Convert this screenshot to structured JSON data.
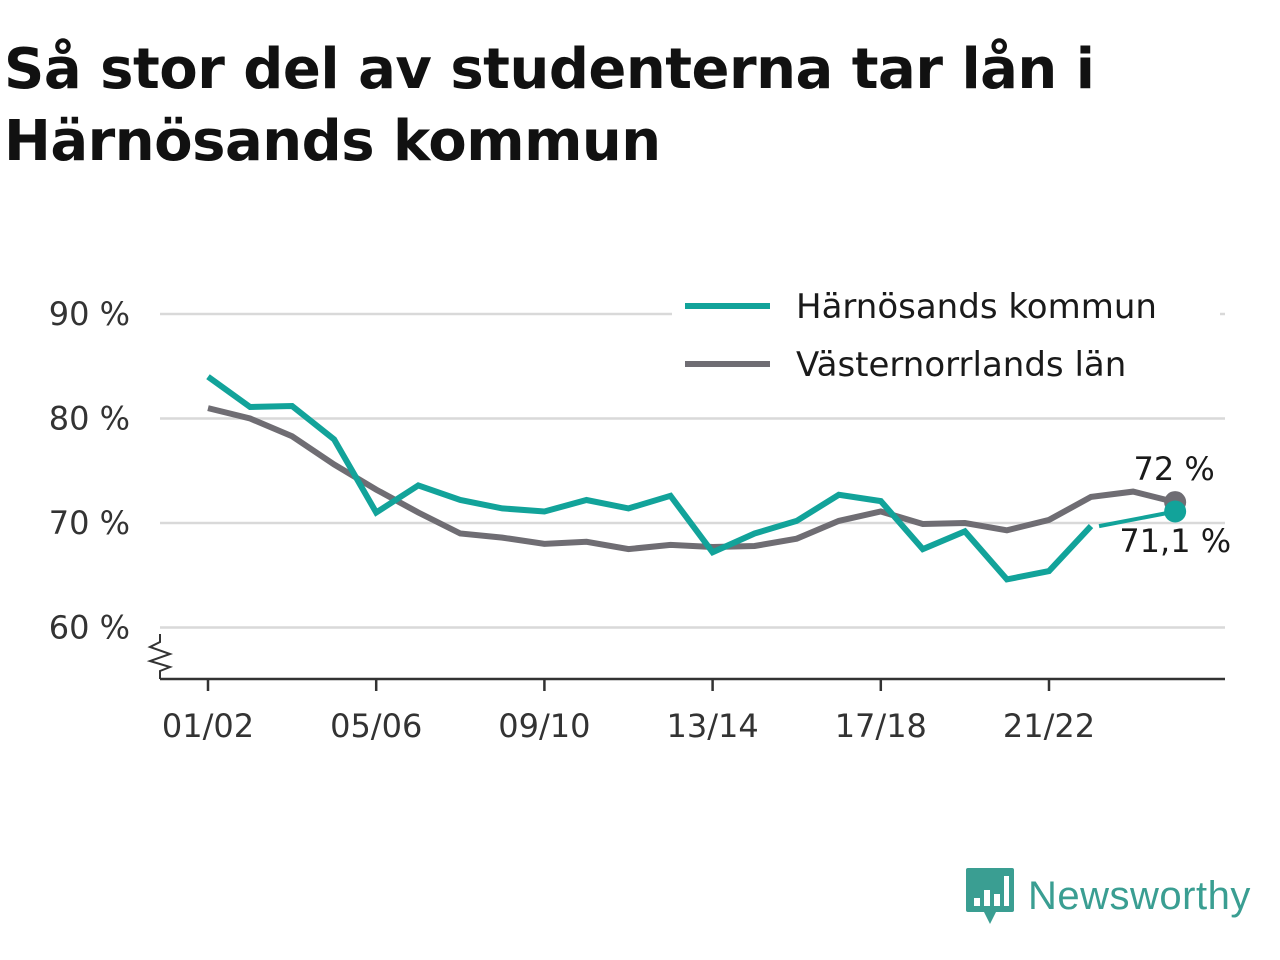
{
  "title": "Så stor del av studenterna tar lån i Härnösands kommun",
  "brand": {
    "name": "Newsworthy",
    "icon": "newsworthy-logo-icon"
  },
  "colors": {
    "teal": "#12a39a",
    "gray": "#6f6d73",
    "grid": "#d9d9d9",
    "axis": "#333333"
  },
  "chart_data": {
    "type": "line",
    "title": "Så stor del av studenterna tar lån i Härnösands kommun",
    "xlabel": "",
    "ylabel": "",
    "ylim": [
      55,
      90
    ],
    "yticks": [
      60,
      70,
      80,
      90
    ],
    "ytick_labels": [
      "60 %",
      "70 %",
      "80 %",
      "90 %"
    ],
    "y_axis_break": true,
    "grid": true,
    "legend_position": "top-right",
    "x": [
      "01/02",
      "02/03",
      "03/04",
      "04/05",
      "05/06",
      "06/07",
      "07/08",
      "08/09",
      "09/10",
      "10/11",
      "11/12",
      "12/13",
      "13/14",
      "14/15",
      "15/16",
      "16/17",
      "17/18",
      "18/19",
      "19/20",
      "20/21",
      "21/22",
      "22/23",
      "23/24",
      "24/25"
    ],
    "xtick_labels": [
      "01/02",
      "05/06",
      "09/10",
      "13/14",
      "17/18",
      "21/22"
    ],
    "series": [
      {
        "name": "Härnösands kommun",
        "color": "#12a39a",
        "values": [
          84.0,
          81.1,
          81.2,
          78.0,
          71.0,
          73.6,
          72.2,
          71.4,
          71.1,
          72.2,
          71.4,
          72.6,
          67.2,
          69.0,
          70.2,
          72.7,
          72.1,
          67.5,
          69.2,
          64.6,
          65.4,
          69.7,
          null,
          71.1
        ],
        "end_label": "71,1 %"
      },
      {
        "name": "Västernorrlands län",
        "color": "#6f6d73",
        "values": [
          81.0,
          80.0,
          78.3,
          75.6,
          73.2,
          71.0,
          69.0,
          68.6,
          68.0,
          68.2,
          67.5,
          67.9,
          67.7,
          67.8,
          68.5,
          70.2,
          71.1,
          69.9,
          70.0,
          69.3,
          70.3,
          72.5,
          73.0,
          72.0
        ],
        "end_label": "72 %"
      }
    ]
  }
}
